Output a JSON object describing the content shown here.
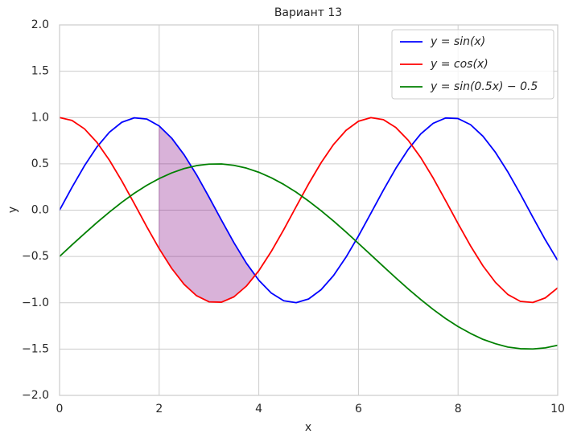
{
  "chart_data": {
    "type": "line",
    "title": "Вариант 13",
    "xlabel": "x",
    "ylabel": "y",
    "x": [
      0,
      0.25,
      0.5,
      0.75,
      1,
      1.25,
      1.5,
      1.75,
      2,
      2.25,
      2.5,
      2.75,
      3,
      3.25,
      3.5,
      3.75,
      4,
      4.25,
      4.5,
      4.75,
      5,
      5.25,
      5.5,
      5.75,
      6,
      6.25,
      6.5,
      6.75,
      7,
      7.25,
      7.5,
      7.75,
      8,
      8.25,
      8.5,
      8.75,
      9,
      9.25,
      9.5,
      9.75,
      10
    ],
    "series": [
      {
        "name": "y = sin(x)",
        "color": "#0000ff",
        "values": [
          0,
          0.247,
          0.479,
          0.682,
          0.841,
          0.949,
          0.997,
          0.984,
          0.909,
          0.778,
          0.598,
          0.382,
          0.141,
          -0.108,
          -0.351,
          -0.572,
          -0.757,
          -0.895,
          -0.978,
          -0.999,
          -0.959,
          -0.859,
          -0.706,
          -0.508,
          -0.279,
          -0.033,
          0.215,
          0.451,
          0.657,
          0.823,
          0.938,
          0.995,
          0.989,
          0.923,
          0.798,
          0.624,
          0.412,
          0.174,
          -0.075,
          -0.319,
          -0.544
        ]
      },
      {
        "name": "y = cos(x)",
        "color": "#ff0000",
        "values": [
          1,
          0.969,
          0.878,
          0.732,
          0.54,
          0.315,
          0.071,
          -0.178,
          -0.416,
          -0.628,
          -0.801,
          -0.924,
          -0.99,
          -0.994,
          -0.936,
          -0.82,
          -0.654,
          -0.446,
          -0.211,
          0.038,
          0.284,
          0.512,
          0.709,
          0.861,
          0.96,
          0.999,
          0.977,
          0.893,
          0.754,
          0.568,
          0.347,
          0.103,
          -0.146,
          -0.386,
          -0.602,
          -0.78,
          -0.911,
          -0.985,
          -0.997,
          -0.948,
          -0.839
        ]
      },
      {
        "name": "y = sin(0.5x) − 0.5",
        "color": "#008000",
        "values": [
          -0.5,
          -0.375,
          -0.253,
          -0.134,
          -0.021,
          0.085,
          0.182,
          0.268,
          0.341,
          0.402,
          0.449,
          0.481,
          0.497,
          0.499,
          0.484,
          0.454,
          0.409,
          0.35,
          0.278,
          0.194,
          0.098,
          -0.006,
          -0.118,
          -0.236,
          -0.359,
          -0.483,
          -0.608,
          -0.731,
          -0.851,
          -0.965,
          -1.072,
          -1.17,
          -1.257,
          -1.331,
          -1.395,
          -1.442,
          -1.478,
          -1.496,
          -1.499,
          -1.487,
          -1.459
        ]
      }
    ],
    "fill": {
      "color": "#800080",
      "alpha": 0.3,
      "x": [
        2,
        2.25,
        2.5,
        2.75,
        3,
        3.25,
        3.5,
        3.75,
        3.927
      ],
      "upper": [
        0.909,
        0.778,
        0.598,
        0.382,
        0.141,
        -0.108,
        -0.351,
        -0.572,
        -0.707
      ],
      "lower": [
        -0.416,
        -0.628,
        -0.801,
        -0.924,
        -0.99,
        -0.994,
        -0.936,
        -0.82,
        -0.707
      ]
    },
    "xlim": [
      0,
      10
    ],
    "ylim": [
      -2,
      2
    ],
    "xticks": [
      0,
      2,
      4,
      6,
      8,
      10
    ],
    "yticks": [
      {
        "value": -2,
        "label": "−2.0"
      },
      {
        "value": -1.5,
        "label": "−1.5"
      },
      {
        "value": -1,
        "label": "−1.0"
      },
      {
        "value": -0.5,
        "label": "−0.5"
      },
      {
        "value": 0,
        "label": "0.0"
      },
      {
        "value": 0.5,
        "label": "0.5"
      },
      {
        "value": 1,
        "label": "1.0"
      },
      {
        "value": 1.5,
        "label": "1.5"
      },
      {
        "value": 2,
        "label": "2.0"
      }
    ],
    "grid": true,
    "legend": "upper right"
  }
}
